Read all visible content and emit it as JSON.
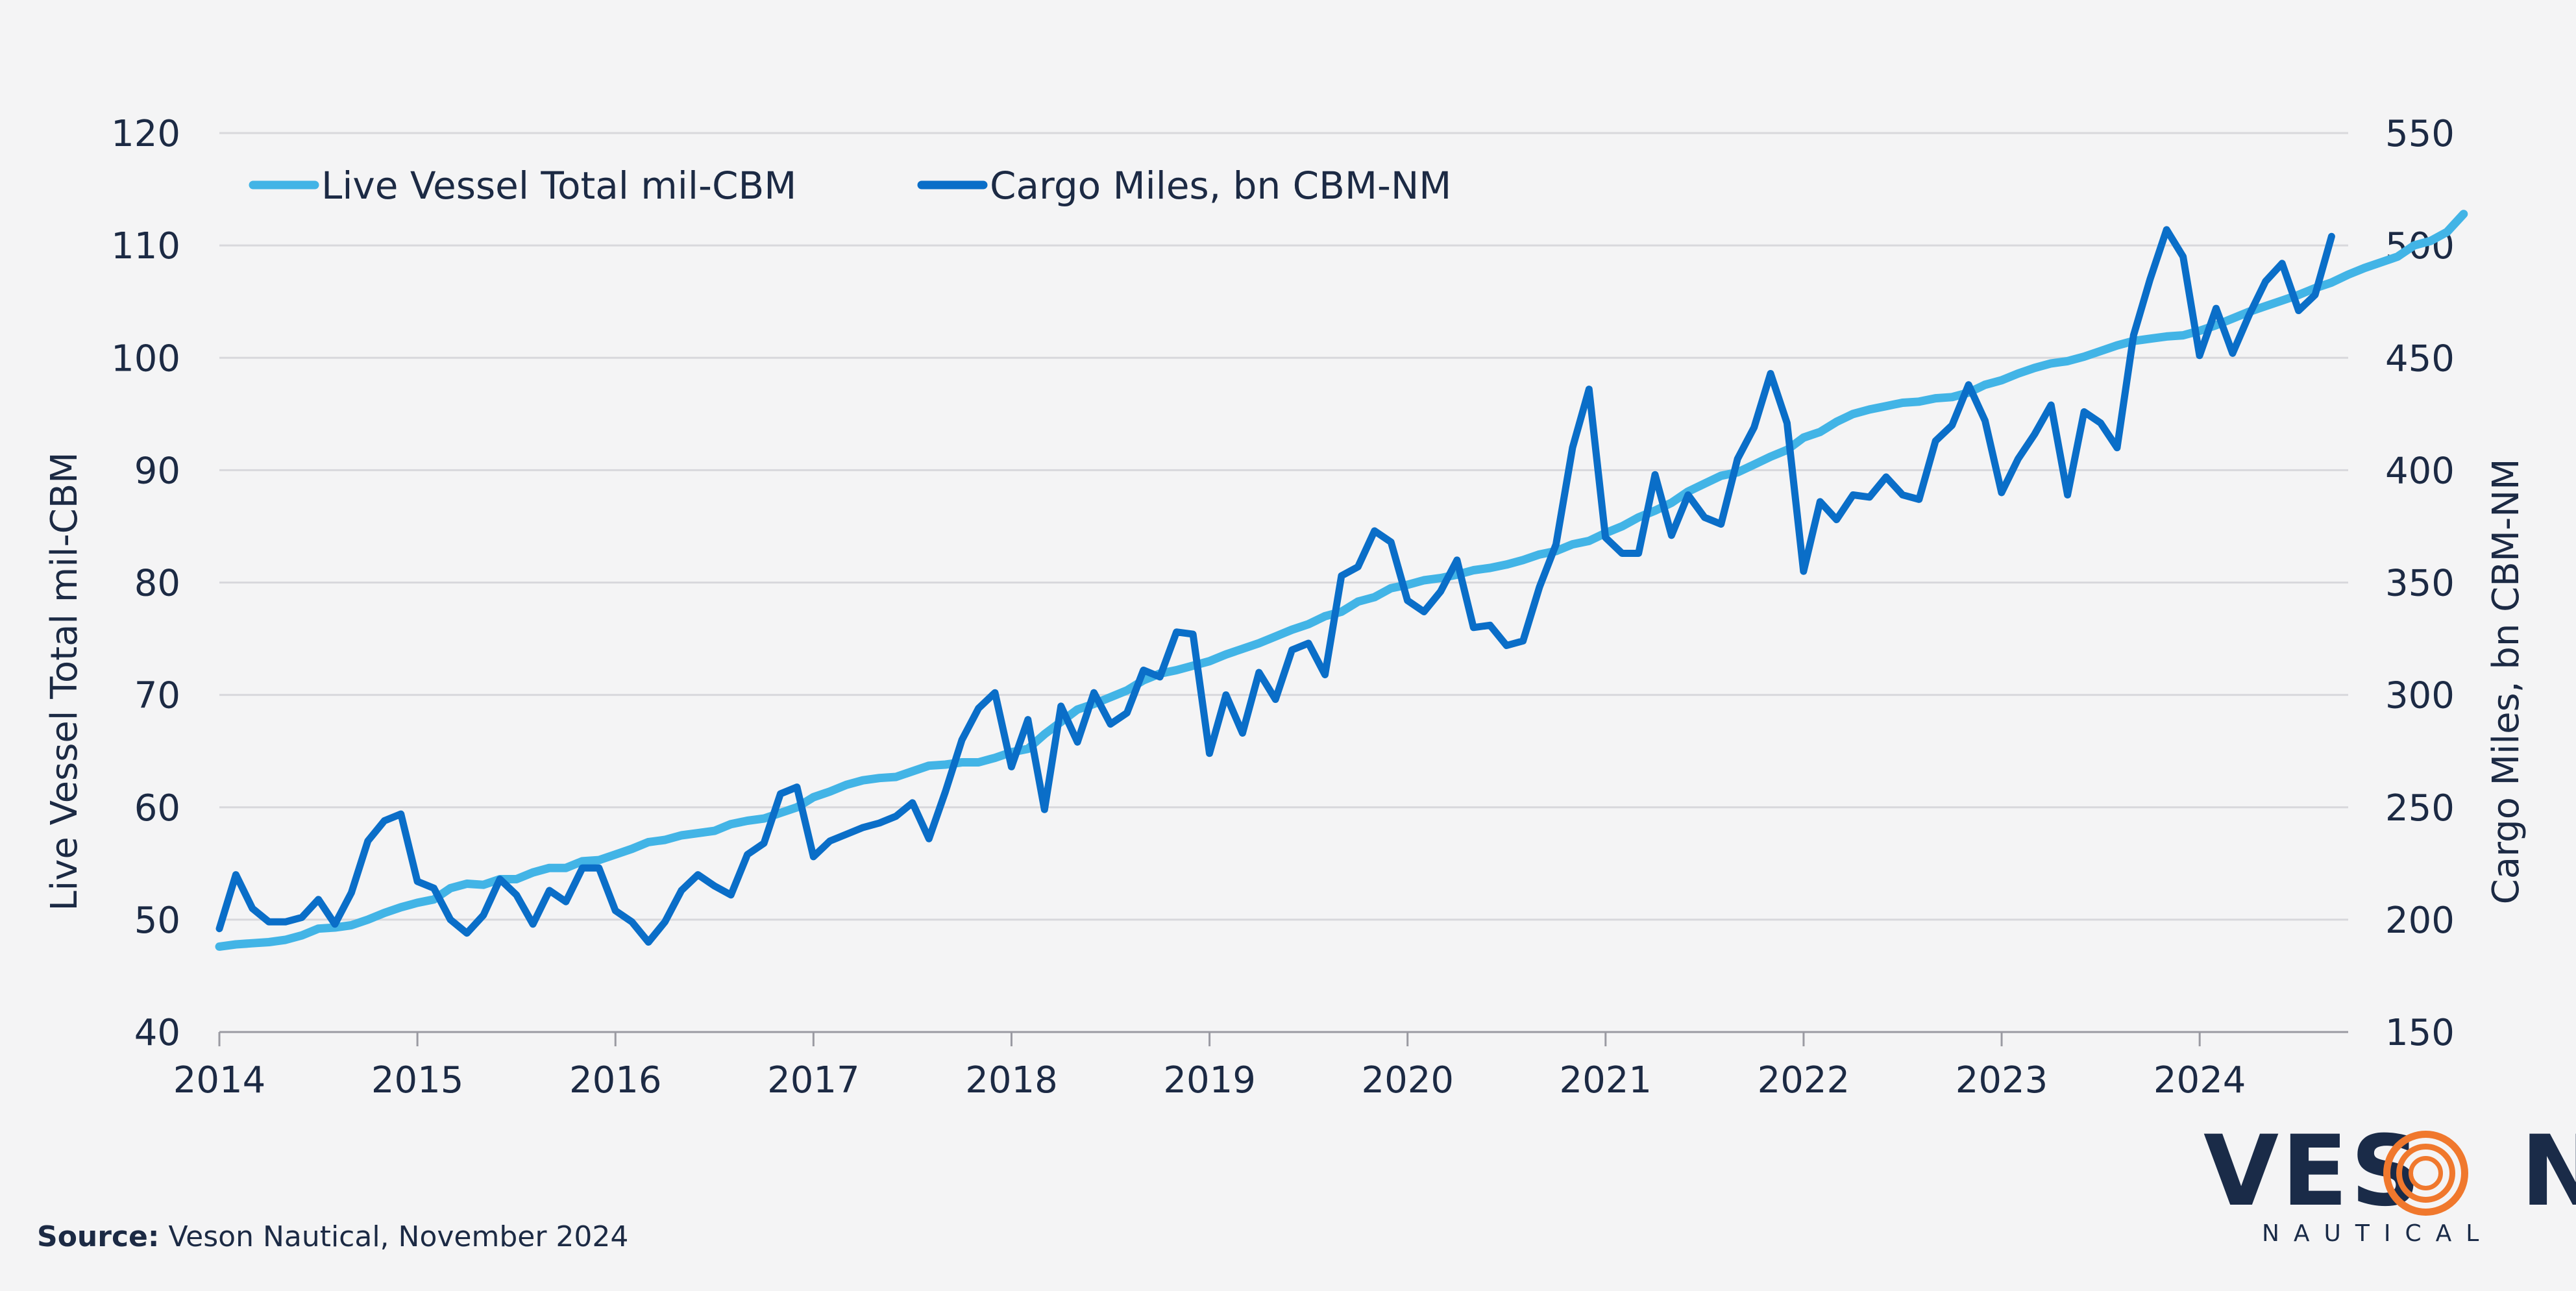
{
  "chart_data": {
    "type": "line",
    "title": "",
    "xlabel": "",
    "ylabel_left": "Live Vessel Total mil-CBM",
    "ylabel_right": "Cargo Miles, bn CBM-NM",
    "ylim_left": [
      40,
      120
    ],
    "ylim_right": [
      150,
      550
    ],
    "yticks_left": [
      "40",
      "50",
      "60",
      "70",
      "80",
      "90",
      "100",
      "110",
      "120"
    ],
    "yticks_right": [
      "150",
      "200",
      "250",
      "300",
      "350",
      "400",
      "450",
      "500",
      "550"
    ],
    "xlim": [
      2014,
      2024.75
    ],
    "xticks": [
      "2014",
      "2015",
      "2016",
      "2017",
      "2018",
      "2019",
      "2020",
      "2021",
      "2022",
      "2023",
      "2024"
    ],
    "grid": true,
    "legend_position": "top-left",
    "start": 2014.0,
    "step": 0.08333,
    "series": [
      {
        "name": "Live Vessel Total  mil-CBM",
        "axis": "left",
        "color": "#42b4e6",
        "values": [
          47.6,
          47.8,
          47.9,
          48.0,
          48.2,
          48.6,
          49.2,
          49.3,
          49.5,
          50.0,
          50.6,
          51.1,
          51.5,
          51.8,
          52.8,
          53.2,
          53.1,
          53.6,
          53.6,
          54.2,
          54.6,
          54.6,
          55.2,
          55.3,
          55.8,
          56.3,
          56.9,
          57.1,
          57.5,
          57.7,
          57.9,
          58.5,
          58.8,
          59.0,
          59.5,
          60.0,
          60.9,
          61.4,
          62.0,
          62.4,
          62.6,
          62.7,
          63.2,
          63.7,
          63.8,
          64.0,
          64.0,
          64.4,
          64.9,
          65.2,
          66.5,
          67.6,
          68.7,
          69.2,
          69.8,
          70.4,
          71.3,
          71.9,
          72.2,
          72.6,
          73.0,
          73.6,
          74.1,
          74.6,
          75.2,
          75.8,
          76.3,
          77.0,
          77.4,
          78.3,
          78.7,
          79.5,
          79.8,
          80.2,
          80.4,
          80.7,
          81.1,
          81.3,
          81.6,
          82.0,
          82.5,
          82.8,
          83.4,
          83.7,
          84.4,
          85.0,
          85.8,
          86.4,
          87.1,
          88.1,
          88.8,
          89.5,
          89.8,
          90.5,
          91.2,
          91.8,
          92.9,
          93.4,
          94.3,
          95.0,
          95.4,
          95.7,
          96.0,
          96.1,
          96.4,
          96.5,
          96.9,
          97.6,
          98.0,
          98.6,
          99.1,
          99.5,
          99.7,
          100.1,
          100.6,
          101.1,
          101.5,
          101.7,
          101.9,
          102.0,
          102.4,
          102.9,
          103.5,
          104.1,
          104.6,
          105.1,
          105.6,
          106.2,
          106.7,
          107.4,
          108.0,
          108.5,
          109.0,
          110.0,
          110.4,
          111.2,
          112.8
        ]
      },
      {
        "name": "Cargo Miles, bn CBM-NM",
        "axis": "right",
        "color": "#0a6ec8",
        "values": [
          196,
          220,
          205,
          199,
          199,
          201,
          209,
          198,
          212,
          235,
          244,
          247,
          217,
          214,
          200,
          194,
          202,
          218,
          211,
          198,
          213,
          208,
          223,
          223,
          204,
          199,
          190,
          199,
          213,
          220,
          215,
          211,
          229,
          234,
          256,
          259,
          228,
          235,
          238,
          241,
          243,
          246,
          252,
          236,
          257,
          280,
          294,
          301,
          268,
          289,
          249,
          295,
          279,
          301,
          287,
          292,
          311,
          308,
          328,
          327,
          274,
          300,
          283,
          310,
          298,
          320,
          323,
          309,
          353,
          357,
          373,
          368,
          342,
          337,
          346,
          360,
          330,
          331,
          322,
          324,
          348,
          367,
          410,
          436,
          370,
          363,
          363,
          398,
          371,
          389,
          379,
          376,
          405,
          419,
          443,
          421,
          355,
          386,
          378,
          389,
          388,
          397,
          389,
          387,
          413,
          420,
          438,
          422,
          390,
          405,
          416,
          429,
          389,
          426,
          421,
          410,
          460,
          485,
          507,
          495,
          451,
          472,
          452,
          469,
          484,
          492,
          471,
          478,
          504
        ]
      }
    ]
  },
  "source": {
    "label": "Source:",
    "text": "Veson Nautical, November 2024"
  },
  "logo": {
    "word_left": "VES",
    "word_right": "N",
    "subtitle": "NAUTICAL",
    "primary_color": "#1a2b48",
    "accent_color": "#f0782d"
  }
}
